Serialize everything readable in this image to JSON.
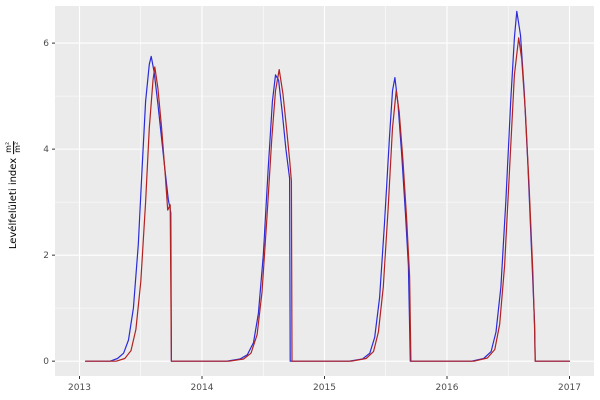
{
  "figure": {
    "background": "#ffffff",
    "panel_background": "#ebebeb",
    "grid_major_color": "#ffffff",
    "grid_minor_color": "#ffffff",
    "tick_label_color": "#4d4d4d",
    "axis_tick_color": "#333333"
  },
  "chart_data": {
    "type": "line",
    "title": "",
    "xlabel": "",
    "ylabel": "Levélfelületi index m²/m²",
    "ylabel_text": "Levélfelületi index",
    "ylabel_unit_numerator": "m²",
    "ylabel_unit_denominator": "m²",
    "grid": true,
    "legend": "none",
    "xlim": [
      2012.8,
      2017.2
    ],
    "ylim": [
      -0.28,
      6.7
    ],
    "x_ticks": {
      "values": [
        2013,
        2014,
        2015,
        2016,
        2017
      ],
      "labels": [
        "2013",
        "2014",
        "2015",
        "2016",
        "2017"
      ]
    },
    "x_minor_ticks": [
      2013.5,
      2014.5,
      2015.5,
      2016.5
    ],
    "y_ticks": {
      "values": [
        0,
        2,
        4,
        6
      ],
      "labels": [
        "0",
        "2",
        "4",
        "6"
      ]
    },
    "y_minor_ticks": [
      1,
      3,
      5
    ],
    "series": [
      {
        "name": "blue",
        "color": "#2b2bd8",
        "points": [
          [
            2013.05,
            0
          ],
          [
            2013.25,
            0
          ],
          [
            2013.31,
            0.05
          ],
          [
            2013.36,
            0.15
          ],
          [
            2013.4,
            0.4
          ],
          [
            2013.44,
            1.0
          ],
          [
            2013.48,
            2.2
          ],
          [
            2013.51,
            3.6
          ],
          [
            2013.54,
            4.9
          ],
          [
            2013.57,
            5.6
          ],
          [
            2013.585,
            5.75
          ],
          [
            2013.61,
            5.45
          ],
          [
            2013.64,
            4.85
          ],
          [
            2013.67,
            4.2
          ],
          [
            2013.7,
            3.55
          ],
          [
            2013.725,
            3.05
          ],
          [
            2013.745,
            2.8
          ],
          [
            2013.75,
            0
          ],
          [
            2014.2,
            0
          ],
          [
            2014.31,
            0.04
          ],
          [
            2014.37,
            0.12
          ],
          [
            2014.42,
            0.35
          ],
          [
            2014.46,
            0.9
          ],
          [
            2014.5,
            2.0
          ],
          [
            2014.54,
            3.6
          ],
          [
            2014.575,
            4.9
          ],
          [
            2014.6,
            5.4
          ],
          [
            2014.625,
            5.3
          ],
          [
            2014.655,
            4.7
          ],
          [
            2014.685,
            4.0
          ],
          [
            2014.715,
            3.45
          ],
          [
            2014.72,
            0
          ],
          [
            2015.2,
            0
          ],
          [
            2015.31,
            0.04
          ],
          [
            2015.37,
            0.15
          ],
          [
            2015.41,
            0.45
          ],
          [
            2015.45,
            1.2
          ],
          [
            2015.49,
            2.6
          ],
          [
            2015.53,
            4.2
          ],
          [
            2015.555,
            5.1
          ],
          [
            2015.575,
            5.35
          ],
          [
            2015.6,
            4.85
          ],
          [
            2015.63,
            3.9
          ],
          [
            2015.66,
            2.8
          ],
          [
            2015.685,
            1.8
          ],
          [
            2015.7,
            0
          ],
          [
            2016.2,
            0
          ],
          [
            2016.3,
            0.05
          ],
          [
            2016.36,
            0.18
          ],
          [
            2016.4,
            0.55
          ],
          [
            2016.44,
            1.4
          ],
          [
            2016.48,
            3.0
          ],
          [
            2016.52,
            4.9
          ],
          [
            2016.55,
            6.1
          ],
          [
            2016.57,
            6.6
          ],
          [
            2016.6,
            6.15
          ],
          [
            2016.63,
            5.1
          ],
          [
            2016.66,
            3.7
          ],
          [
            2016.69,
            2.1
          ],
          [
            2016.715,
            0.7
          ],
          [
            2016.72,
            0
          ],
          [
            2017.0,
            0
          ]
        ]
      },
      {
        "name": "red",
        "color": "#b22222",
        "points": [
          [
            2013.05,
            0
          ],
          [
            2013.3,
            0
          ],
          [
            2013.37,
            0.05
          ],
          [
            2013.42,
            0.2
          ],
          [
            2013.46,
            0.6
          ],
          [
            2013.5,
            1.5
          ],
          [
            2013.54,
            3.0
          ],
          [
            2013.57,
            4.4
          ],
          [
            2013.6,
            5.3
          ],
          [
            2013.615,
            5.55
          ],
          [
            2013.64,
            5.15
          ],
          [
            2013.67,
            4.4
          ],
          [
            2013.7,
            3.5
          ],
          [
            2013.72,
            2.85
          ],
          [
            2013.74,
            2.95
          ],
          [
            2013.75,
            0
          ],
          [
            2014.22,
            0
          ],
          [
            2014.34,
            0.04
          ],
          [
            2014.4,
            0.15
          ],
          [
            2014.45,
            0.5
          ],
          [
            2014.49,
            1.3
          ],
          [
            2014.53,
            2.7
          ],
          [
            2014.57,
            4.2
          ],
          [
            2014.6,
            5.1
          ],
          [
            2014.63,
            5.5
          ],
          [
            2014.66,
            5.05
          ],
          [
            2014.69,
            4.4
          ],
          [
            2014.715,
            3.8
          ],
          [
            2014.73,
            3.4
          ],
          [
            2014.735,
            0
          ],
          [
            2015.22,
            0
          ],
          [
            2015.34,
            0.05
          ],
          [
            2015.4,
            0.18
          ],
          [
            2015.44,
            0.55
          ],
          [
            2015.48,
            1.4
          ],
          [
            2015.52,
            2.9
          ],
          [
            2015.555,
            4.4
          ],
          [
            2015.585,
            5.1
          ],
          [
            2015.61,
            4.7
          ],
          [
            2015.64,
            3.8
          ],
          [
            2015.67,
            2.7
          ],
          [
            2015.695,
            1.6
          ],
          [
            2015.705,
            0
          ],
          [
            2016.22,
            0
          ],
          [
            2016.33,
            0.06
          ],
          [
            2016.39,
            0.22
          ],
          [
            2016.43,
            0.7
          ],
          [
            2016.47,
            1.8
          ],
          [
            2016.51,
            3.6
          ],
          [
            2016.55,
            5.4
          ],
          [
            2016.585,
            6.1
          ],
          [
            2016.61,
            5.7
          ],
          [
            2016.64,
            4.7
          ],
          [
            2016.67,
            3.3
          ],
          [
            2016.7,
            1.7
          ],
          [
            2016.715,
            0.6
          ],
          [
            2016.72,
            0
          ],
          [
            2017.0,
            0
          ]
        ]
      }
    ]
  }
}
